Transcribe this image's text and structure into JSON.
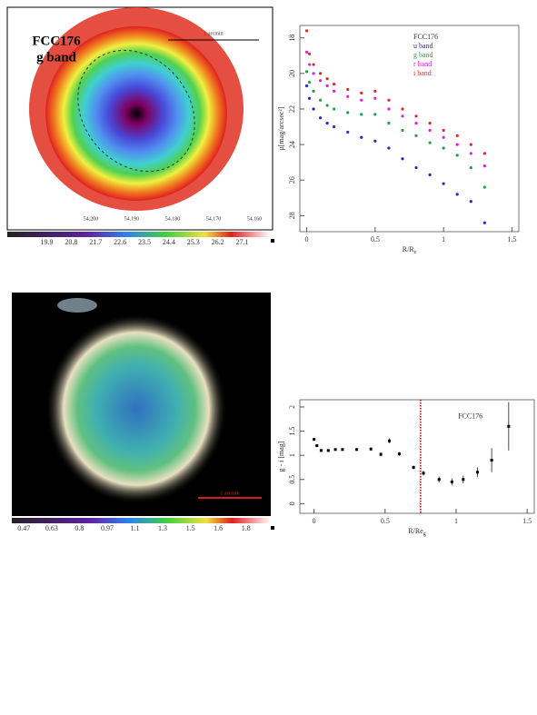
{
  "figure": {
    "image_panels": [
      {
        "title": "FCC176",
        "subtitle": "g band",
        "scale_label": "1 arcmin",
        "x_ticks": [
          "54.200",
          "54.190",
          "54.180",
          "54.170",
          "54.160"
        ],
        "colorbar_ticks": [
          "19.9",
          "20.8",
          "21.7",
          "22.6",
          "23.5",
          "24.4",
          "25.3",
          "26.2",
          "27.1"
        ]
      },
      {
        "scale_label": "1 arcmin",
        "colorbar_ticks": [
          "0.47",
          "0.63",
          "0.8",
          "0.97",
          "1.1",
          "1.3",
          "1.5",
          "1.6",
          "1.8"
        ]
      }
    ]
  },
  "chart_data": [
    {
      "type": "scatter",
      "legend_title": "FCC176",
      "xlabel": "R/R",
      "xlabel_sub": "e",
      "ylabel": "μ[mag/arcsec²]",
      "xlim": [
        -0.05,
        1.55
      ],
      "ylim": [
        28.9,
        17.3
      ],
      "xticks": [
        0,
        0.5,
        1,
        1.5
      ],
      "yticks": [
        18,
        20,
        22,
        24,
        26,
        28
      ],
      "x": [
        0,
        0.02,
        0.05,
        0.1,
        0.15,
        0.2,
        0.3,
        0.4,
        0.5,
        0.6,
        0.7,
        0.8,
        0.9,
        1,
        1.1,
        1.2,
        1.3
      ],
      "series": [
        {
          "name": "u band",
          "color": "#2828c8",
          "values": [
            20.7,
            21.4,
            22.0,
            22.5,
            22.8,
            23.0,
            23.3,
            23.6,
            23.8,
            24.2,
            24.8,
            25.3,
            25.7,
            26.2,
            26.8,
            27.2,
            28.4
          ]
        },
        {
          "name": "g band",
          "color": "#22a044",
          "values": [
            19.9,
            20.5,
            21.0,
            21.5,
            21.8,
            22.0,
            22.2,
            22.3,
            22.3,
            22.8,
            23.2,
            23.5,
            23.9,
            24.2,
            24.6,
            25.3,
            26.4
          ]
        },
        {
          "name": "r band",
          "color": "#e020e0",
          "values": [
            18.8,
            19.5,
            20.0,
            20.4,
            20.7,
            21.0,
            21.3,
            21.5,
            21.4,
            22.0,
            22.4,
            22.8,
            23.2,
            23.6,
            24.0,
            24.5,
            25.2
          ]
        },
        {
          "name": "i band",
          "color": "#e02828",
          "values": [
            17.6,
            18.9,
            19.5,
            20.0,
            20.3,
            20.6,
            20.9,
            21.1,
            21.0,
            21.5,
            22.0,
            22.4,
            22.8,
            23.2,
            23.5,
            24.0,
            24.5
          ]
        }
      ]
    },
    {
      "type": "errorbar",
      "annotation": "FCC176",
      "xlabel": "R/Re",
      "xlabel_sub": "g",
      "ylabel": "g - i [mag]",
      "xlim": [
        -0.1,
        1.55
      ],
      "ylim": [
        -0.2,
        2.15
      ],
      "xticks": [
        0,
        0.5,
        1,
        1.5
      ],
      "yticks": [
        0,
        0.5,
        1,
        1.5,
        2
      ],
      "vline": 0.75,
      "vline_color": "#c00000",
      "color": "#000000",
      "x": [
        0,
        0.02,
        0.05,
        0.1,
        0.15,
        0.2,
        0.3,
        0.4,
        0.47,
        0.53,
        0.6,
        0.7,
        0.77,
        0.88,
        0.97,
        1.05,
        1.15,
        1.25,
        1.37
      ],
      "values": [
        1.33,
        1.2,
        1.1,
        1.1,
        1.12,
        1.12,
        1.12,
        1.13,
        1.02,
        1.3,
        1.03,
        0.75,
        0.63,
        0.5,
        0.45,
        0.5,
        0.65,
        0.9,
        1.6
      ],
      "errors": [
        0.02,
        0.02,
        0.02,
        0.02,
        0.02,
        0.02,
        0.02,
        0.03,
        0.04,
        0.05,
        0.04,
        0.04,
        0.05,
        0.06,
        0.07,
        0.08,
        0.1,
        0.25,
        0.5
      ]
    }
  ]
}
